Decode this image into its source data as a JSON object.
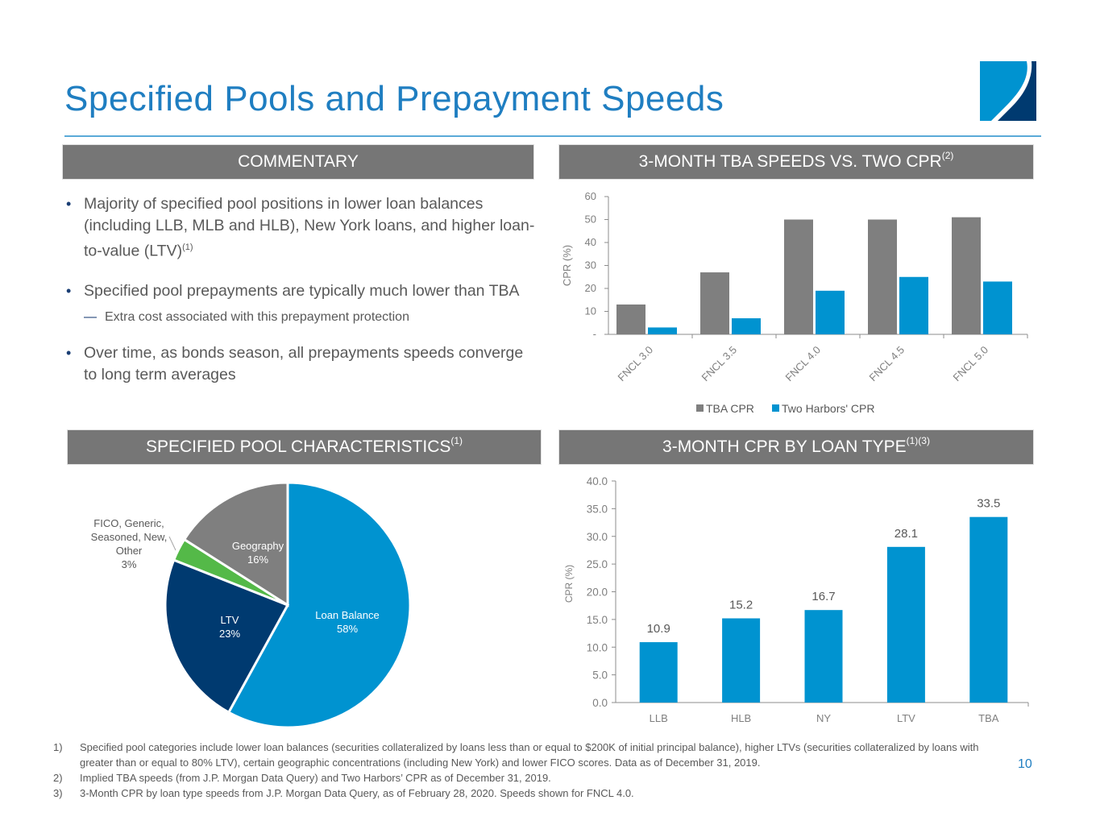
{
  "header": {
    "title": "Specified Pools and Prepayment Speeds",
    "logo_icon": "two-harbors-logo-icon"
  },
  "sections": {
    "commentary": {
      "label": "COMMENTARY",
      "sup": ""
    },
    "tba_speeds": {
      "label": "3-MONTH TBA SPEEDS VS. TWO CPR",
      "sup": "(2)"
    },
    "pool_characteristics": {
      "label": "SPECIFIED POOL CHARACTERISTICS",
      "sup": "(1)"
    },
    "cpr_by_loan_type": {
      "label": "3-MONTH CPR BY LOAN TYPE",
      "sup": "(1)(3)"
    }
  },
  "commentary": {
    "bullets": [
      {
        "text": "Majority of specified pool positions in lower loan balances (including LLB, MLB and HLB), New York loans, and higher loan-to-value (LTV)",
        "sup": "(1)"
      },
      {
        "text": "Specified pool prepayments are typically much lower than TBA",
        "sup": ""
      },
      {
        "text": "Over time, as bonds season, all prepayments speeds converge to long term averages",
        "sup": ""
      }
    ],
    "sub_bullet": "Extra cost associated with this prepayment protection"
  },
  "colors": {
    "title_blue": "#1f7ec1",
    "header_gray": "#767676",
    "bar_gray": "#7f7f7f",
    "bar_blue": "#0093d0",
    "navy": "#003a70",
    "green": "#54b948",
    "geo_gray": "#7f7f7f"
  },
  "chart_data": [
    {
      "type": "bar",
      "title": "3-MONTH TBA SPEEDS VS. TWO CPR(2)",
      "categories": [
        "FNCL 3.0",
        "FNCL 3.5",
        "FNCL 4.0",
        "FNCL 4.5",
        "FNCL 5.0"
      ],
      "series": [
        {
          "name": "TBA CPR",
          "color": "#7f7f7f",
          "values": [
            13,
            27,
            50,
            50,
            51
          ]
        },
        {
          "name": "Two Harbors' CPR",
          "color": "#0093d0",
          "values": [
            3,
            7,
            19,
            25,
            23
          ]
        }
      ],
      "xlabel": "",
      "ylabel": "CPR (%)",
      "ylim": [
        0,
        60
      ],
      "yticks": [
        0,
        10,
        20,
        30,
        40,
        50,
        60
      ],
      "ytick_labels": [
        "-",
        "10",
        "20",
        "30",
        "40",
        "50",
        "60"
      ],
      "legend": "bottom",
      "grid": false
    },
    {
      "type": "pie",
      "title": "SPECIFIED POOL CHARACTERISTICS(1)",
      "slices": [
        {
          "label": "Loan Balance",
          "value": 58,
          "display": "58%",
          "color": "#0093d0"
        },
        {
          "label": "LTV",
          "value": 23,
          "display": "23%",
          "color": "#003a70"
        },
        {
          "label": "FICO, Generic, Seasoned, New, Other",
          "label_lines": [
            "FICO, Generic,",
            "Seasoned, New,",
            "Other"
          ],
          "value": 3,
          "display": "3%",
          "color": "#54b948"
        },
        {
          "label": "Geography",
          "value": 16,
          "display": "16%",
          "color": "#7f7f7f"
        }
      ]
    },
    {
      "type": "bar",
      "title": "3-MONTH CPR BY LOAN TYPE(1)(3)",
      "categories": [
        "LLB",
        "HLB",
        "NY",
        "LTV",
        "TBA"
      ],
      "values": [
        10.9,
        15.2,
        16.7,
        28.1,
        33.5
      ],
      "value_labels": [
        "10.9",
        "15.2",
        "16.7",
        "28.1",
        "33.5"
      ],
      "color": "#0093d0",
      "xlabel": "",
      "ylabel": "CPR (%)",
      "ylim": [
        0,
        40
      ],
      "yticks": [
        0,
        5,
        10,
        15,
        20,
        25,
        30,
        35,
        40
      ],
      "ytick_labels": [
        "0.0",
        "5.0",
        "10.0",
        "15.0",
        "20.0",
        "25.0",
        "30.0",
        "35.0",
        "40.0"
      ],
      "grid": false
    }
  ],
  "footnotes": [
    {
      "num": "1)",
      "text": "Specified pool categories include lower loan balances (securities collateralized by loans less than or equal to $200K of initial principal balance), higher LTVs (securities collateralized by loans with greater than or equal to 80% LTV), certain geographic concentrations (including New York) and lower FICO scores. Data as of December 31, 2019."
    },
    {
      "num": "2)",
      "text": "Implied TBA speeds (from J.P. Morgan Data Query) and Two Harbors’ CPR as of December 31, 2019."
    },
    {
      "num": "3)",
      "text": "3-Month CPR by loan type speeds from J.P. Morgan Data Query, as of February 28, 2020. Speeds shown for FNCL 4.0."
    }
  ],
  "page_number": "10"
}
